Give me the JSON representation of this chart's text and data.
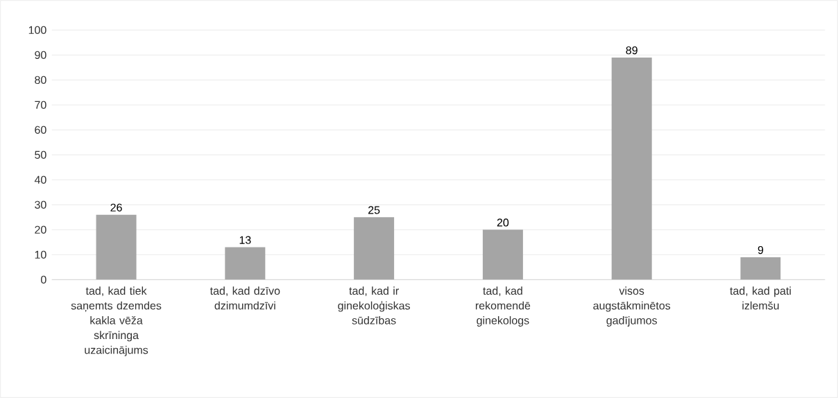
{
  "chart_data": {
    "type": "bar",
    "categories": [
      "tad, kad tiek saņemts dzemdes kakla vēža skrīninga uzaicinājums",
      "tad, kad dzīvo dzimumdzīvi",
      "tad, kad ir ginekoloģiskas sūdzības",
      "tad, kad rekomendē ginekologs",
      "visos augstākminētos gadījumos",
      "tad, kad pati izlemšu"
    ],
    "values": [
      26,
      13,
      25,
      20,
      89,
      9
    ],
    "color": "#a5a5a5",
    "ylim": [
      0,
      100
    ],
    "yticks": [
      0,
      10,
      20,
      30,
      40,
      50,
      60,
      70,
      80,
      90,
      100
    ],
    "grid": "y",
    "data_labels": true
  }
}
